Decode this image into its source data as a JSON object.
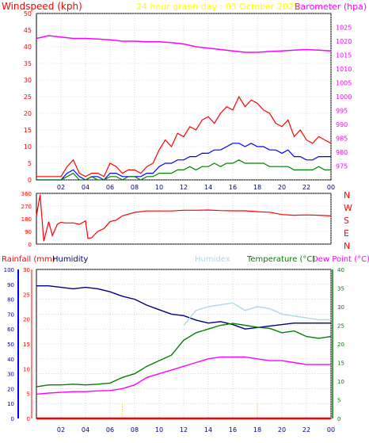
{
  "colors": {
    "wind": "#ff0000",
    "gust": "#0000ff",
    "windavg": "#008000",
    "baro": "#ff00ff",
    "title": "#ffff00",
    "winddir": "#ff0000",
    "rain": "#ff0000",
    "humidity": "#000080",
    "humidex": "#add8e6",
    "temperature": "#008000",
    "dewpoint": "#ff00ff",
    "axis": "#ff0000",
    "grid": "#c0c0c0",
    "frame": "#000000",
    "tick": "#000080",
    "leftaxis": "#0000ff"
  },
  "header": {
    "windspeed": "Windspeed (kph)",
    "title": "24 hour graph day : 05 October 2025",
    "barometer": "Barometer (hpa)"
  },
  "panel2": {
    "compass": [
      "N",
      "W",
      "S",
      "E",
      "N"
    ]
  },
  "panel3": {
    "rainfall": "Rainfall (mm)",
    "humidity": "Humidity",
    "humidex": "Humidex",
    "temperature": "Temperature (°C)",
    "dewpoint": "Dew Point (°C)"
  },
  "chart_data": [
    {
      "type": "line",
      "title": "24 hour graph day : 05 October 2025",
      "ylabel": "Windspeed (kph)",
      "y2label": "Barometer (hpa)",
      "x_ticks": [
        "02",
        "04",
        "06",
        "08",
        "10",
        "12",
        "14",
        "16",
        "18",
        "20",
        "22",
        "00"
      ],
      "ylim": [
        0,
        50
      ],
      "yticks": [
        0,
        5,
        10,
        15,
        20,
        25,
        30,
        35,
        40,
        45,
        50
      ],
      "y2lim": [
        970,
        1030
      ],
      "y2ticks": [
        975,
        980,
        985,
        990,
        995,
        1000,
        1005,
        1010,
        1015,
        1020,
        1025
      ],
      "grid": true,
      "series": [
        {
          "name": "gust",
          "color": "#ff0000",
          "x": [
            0,
            1,
            2,
            2.5,
            3,
            3.5,
            4,
            4.5,
            5,
            5.5,
            6,
            6.5,
            7,
            7.5,
            8,
            8.5,
            9,
            9.5,
            10,
            10.5,
            11,
            11.5,
            12,
            12.5,
            13,
            13.5,
            14,
            14.5,
            15,
            15.5,
            16,
            16.5,
            17,
            17.5,
            18,
            18.5,
            19,
            19.5,
            20,
            20.5,
            21,
            21.5,
            22,
            22.5,
            23,
            23.5,
            24
          ],
          "y": [
            1,
            1,
            1,
            4,
            6,
            2,
            1,
            2,
            2,
            1,
            5,
            4,
            2,
            3,
            3,
            2,
            4,
            5,
            9,
            12,
            10,
            14,
            13,
            16,
            15,
            18,
            19,
            17,
            20,
            22,
            21,
            25,
            22,
            24,
            23,
            21,
            20,
            17,
            16,
            18,
            13,
            15,
            12,
            11,
            13,
            12,
            11
          ]
        },
        {
          "name": "wind",
          "color": "#0000ff",
          "x": [
            0,
            1,
            2,
            2.5,
            3,
            3.5,
            4,
            4.5,
            5,
            5.5,
            6,
            6.5,
            7,
            7.5,
            8,
            8.5,
            9,
            9.5,
            10,
            10.5,
            11,
            11.5,
            12,
            12.5,
            13,
            13.5,
            14,
            14.5,
            15,
            15.5,
            16,
            16.5,
            17,
            17.5,
            18,
            18.5,
            19,
            19.5,
            20,
            20.5,
            21,
            21.5,
            22,
            22.5,
            23,
            23.5,
            24
          ],
          "y": [
            0,
            0,
            0,
            2,
            3,
            1,
            0,
            1,
            1,
            0,
            2,
            2,
            1,
            1,
            1,
            1,
            2,
            2,
            4,
            5,
            5,
            6,
            6,
            7,
            7,
            8,
            8,
            9,
            9,
            10,
            11,
            11,
            10,
            11,
            10,
            10,
            9,
            9,
            8,
            9,
            7,
            7,
            6,
            6,
            7,
            7,
            7
          ]
        },
        {
          "name": "average",
          "color": "#008000",
          "x": [
            0,
            1,
            2,
            2.5,
            3,
            3.5,
            4,
            4.5,
            5,
            5.5,
            6,
            6.5,
            7,
            7.5,
            8,
            8.5,
            9,
            9.5,
            10,
            10.5,
            11,
            11.5,
            12,
            12.5,
            13,
            13.5,
            14,
            14.5,
            15,
            15.5,
            16,
            16.5,
            17,
            17.5,
            18,
            18.5,
            19,
            19.5,
            20,
            20.5,
            21,
            21.5,
            22,
            22.5,
            23,
            23.5,
            24
          ],
          "y": [
            0,
            0,
            0,
            1,
            2,
            0,
            0,
            1,
            0,
            0,
            1,
            1,
            0,
            1,
            1,
            0,
            1,
            1,
            2,
            2,
            2,
            3,
            3,
            4,
            3,
            4,
            4,
            5,
            4,
            5,
            5,
            6,
            5,
            5,
            5,
            5,
            4,
            4,
            4,
            4,
            3,
            3,
            3,
            3,
            4,
            3,
            3
          ]
        },
        {
          "name": "barometer",
          "color": "#ff00ff",
          "axis": "right",
          "x": [
            0,
            1,
            2,
            3,
            4,
            5,
            6,
            7,
            8,
            9,
            10,
            11,
            12,
            13,
            14,
            15,
            16,
            17,
            18,
            19,
            20,
            21,
            22,
            23,
            24
          ],
          "y": [
            1021,
            1022,
            1021.5,
            1021,
            1021,
            1020.8,
            1020.5,
            1020,
            1020,
            1019.8,
            1019.8,
            1019.5,
            1019,
            1018,
            1017.5,
            1017,
            1016.5,
            1016,
            1016,
            1016.3,
            1016.5,
            1016.8,
            1017,
            1016.8,
            1016.5
          ]
        }
      ]
    },
    {
      "type": "line",
      "xlabel": "",
      "ylabel": "Wind direction",
      "x_ticks": [],
      "ylim": [
        0,
        360
      ],
      "yticks": [
        0,
        90,
        180,
        270,
        360
      ],
      "grid": true,
      "series": [
        {
          "name": "direction",
          "color": "#ff0000",
          "x": [
            0,
            0.3,
            0.6,
            1.0,
            1.3,
            1.7,
            2,
            2.3,
            3,
            3.5,
            4,
            4.2,
            4.5,
            5,
            5.5,
            6,
            6.5,
            7,
            8,
            9,
            10,
            11,
            12,
            13,
            14,
            15,
            16,
            17,
            18,
            19,
            20,
            21,
            22,
            23,
            24
          ],
          "y": [
            200,
            350,
            20,
            160,
            60,
            140,
            155,
            150,
            150,
            140,
            165,
            40,
            45,
            90,
            110,
            160,
            170,
            200,
            225,
            235,
            235,
            235,
            240,
            240,
            242,
            238,
            236,
            236,
            230,
            226,
            210,
            205,
            207,
            205,
            200
          ]
        }
      ]
    },
    {
      "type": "line",
      "title": "",
      "ylabel": "Rainfall (mm)",
      "x_ticks": [
        "02",
        "04",
        "06",
        "08",
        "10",
        "12",
        "14",
        "16",
        "18",
        "20",
        "22",
        "00"
      ],
      "ylim": [
        0,
        30
      ],
      "yticks": [
        0,
        5,
        10,
        15,
        20,
        25,
        30
      ],
      "ylim_humidity": [
        0,
        100
      ],
      "yticks_humidity": [
        0,
        10,
        20,
        30,
        40,
        50,
        60,
        70,
        80,
        90,
        100
      ],
      "y2lim": [
        0,
        40
      ],
      "y2ticks": [
        0,
        5,
        10,
        15,
        20,
        25,
        30,
        35,
        40
      ],
      "grid": true,
      "series": [
        {
          "name": "Humidity",
          "color": "#000080",
          "axis": "humidity",
          "x": [
            0,
            1,
            2,
            3,
            4,
            5,
            6,
            7,
            8,
            9,
            10,
            11,
            12,
            13,
            14,
            15,
            16,
            17,
            18,
            19,
            20,
            21,
            22,
            23,
            24
          ],
          "y": [
            89,
            89,
            88,
            87,
            88,
            87,
            85,
            82,
            80,
            76,
            73,
            70,
            69,
            66,
            64,
            65,
            63,
            60,
            61,
            62,
            63,
            64,
            64,
            64,
            64
          ]
        },
        {
          "name": "Humidex",
          "color": "#add8e6",
          "axis": "right",
          "x": [
            12,
            12.5,
            13,
            14,
            15,
            16,
            17,
            18,
            19,
            20,
            21,
            22,
            23,
            24
          ],
          "y": [
            25,
            27,
            29,
            30,
            30.5,
            31,
            29,
            30,
            29.5,
            28,
            27.5,
            27,
            26.5,
            26.5
          ]
        },
        {
          "name": "Temperature (°C)",
          "color": "#008000",
          "axis": "right",
          "x": [
            0,
            1,
            2,
            3,
            4,
            5,
            6,
            7,
            8,
            9,
            10,
            11,
            12,
            13,
            14,
            15,
            16,
            17,
            18,
            19,
            20,
            21,
            22,
            23,
            24
          ],
          "y": [
            8.5,
            9,
            9,
            9.2,
            9,
            9.2,
            9.5,
            11,
            12,
            14,
            15.5,
            17,
            21,
            23,
            24,
            25,
            25.5,
            25,
            24.5,
            24.2,
            23,
            23.5,
            22,
            21.5,
            22
          ]
        },
        {
          "name": "Dew Point (°C)",
          "color": "#ff00ff",
          "axis": "right",
          "x": [
            0,
            1,
            2,
            3,
            4,
            5,
            6,
            7,
            8,
            9,
            10,
            11,
            12,
            13,
            14,
            15,
            16,
            17,
            18,
            19,
            20,
            21,
            22,
            23,
            24
          ],
          "y": [
            6.5,
            6.8,
            7,
            7.2,
            7.2,
            7.4,
            7.5,
            8,
            9,
            11,
            12,
            13,
            14,
            15,
            16,
            16.5,
            16.5,
            16.5,
            16,
            15.5,
            15.5,
            15,
            14.5,
            14.5,
            14.5
          ]
        },
        {
          "name": "Rainfall (mm)",
          "color": "#ff0000",
          "x": [
            0,
            24
          ],
          "y": [
            0,
            0
          ]
        }
      ]
    }
  ]
}
